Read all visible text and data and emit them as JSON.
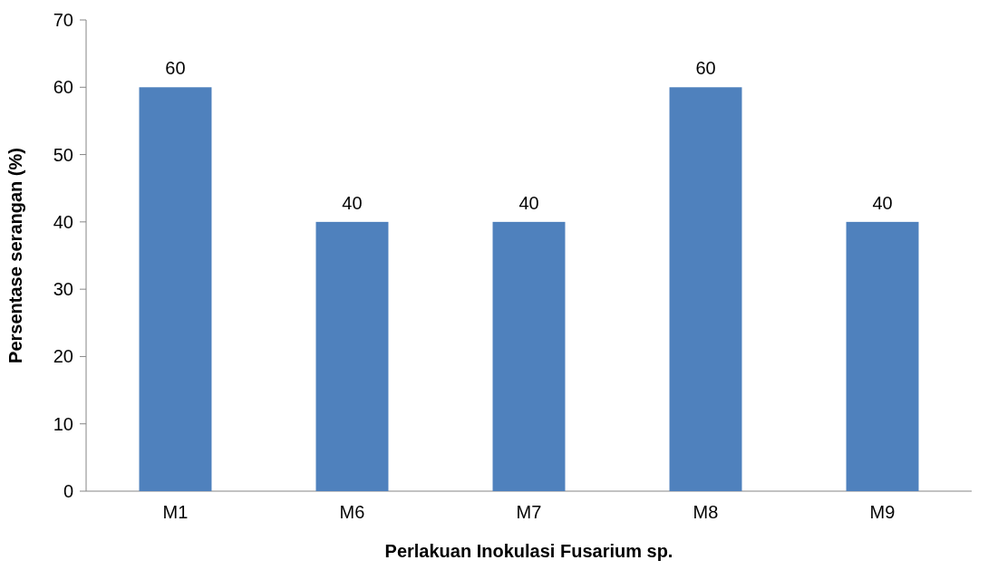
{
  "chart_data": {
    "type": "bar",
    "xlabel": "Perlakuan Inokulasi Fusarium sp.",
    "ylabel": "Persentase serangan (%)",
    "categories": [
      "M1",
      "M6",
      "M7",
      "M8",
      "M9"
    ],
    "values": [
      60,
      40,
      40,
      60,
      40
    ],
    "color": "#4f81bd",
    "ylim": [
      0,
      70
    ],
    "yticks": [
      0,
      10,
      20,
      30,
      40,
      50,
      60,
      70
    ],
    "grid": false,
    "data_labels": true
  }
}
